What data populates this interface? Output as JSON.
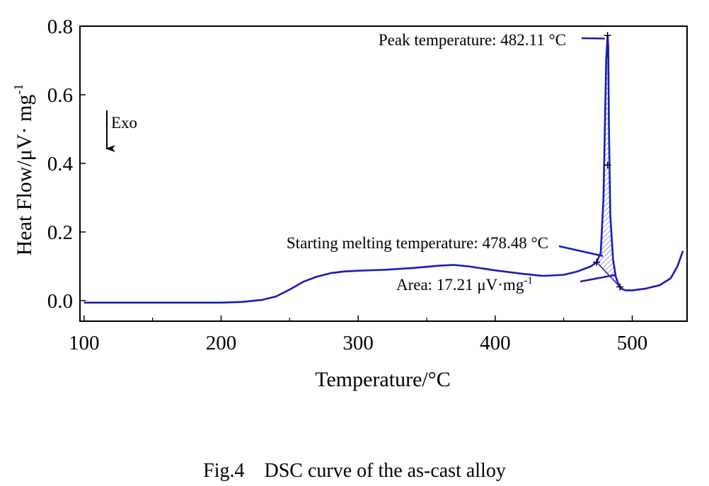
{
  "chart_data": {
    "type": "line",
    "xlabel": "Temperature/°C",
    "ylabel": "Heat Flow/μV· mg",
    "ylabel_sup": "-1",
    "xlim": [
      97,
      540
    ],
    "ylim": [
      -0.06,
      0.8
    ],
    "xticks": [
      100,
      200,
      300,
      400,
      500
    ],
    "yticks": [
      0.0,
      0.2,
      0.4,
      0.6,
      0.8
    ],
    "xtick_labels": [
      "100",
      "200",
      "300",
      "400",
      "500"
    ],
    "ytick_labels": [
      "0.0",
      "0.2",
      "0.4",
      "0.6",
      "0.8"
    ],
    "series": [
      {
        "color": "#1a1ab4",
        "x": [
          100,
          150,
          200,
          215,
          230,
          240,
          250,
          260,
          270,
          280,
          290,
          300,
          320,
          340,
          360,
          370,
          380,
          400,
          420,
          435,
          450,
          460,
          470,
          474,
          477,
          479,
          480,
          481,
          482,
          482.5,
          483,
          484,
          486,
          488,
          490,
          492,
          495,
          500,
          510,
          520,
          528,
          533,
          537
        ],
        "y": [
          -0.006,
          -0.006,
          -0.006,
          -0.004,
          0.002,
          0.012,
          0.032,
          0.055,
          0.07,
          0.08,
          0.085,
          0.087,
          0.09,
          0.095,
          0.102,
          0.104,
          0.1,
          0.088,
          0.078,
          0.072,
          0.075,
          0.085,
          0.1,
          0.112,
          0.14,
          0.3,
          0.5,
          0.7,
          0.773,
          0.74,
          0.5,
          0.25,
          0.12,
          0.07,
          0.045,
          0.035,
          0.03,
          0.03,
          0.035,
          0.045,
          0.065,
          0.1,
          0.145
        ]
      }
    ],
    "shaded_area": {
      "baseline_start": [
        474,
        0.112
      ],
      "baseline_end": [
        491,
        0.04
      ]
    },
    "markers": [
      {
        "x": 474,
        "y": 0.112
      },
      {
        "x": 491,
        "y": 0.04
      },
      {
        "x": 482,
        "y": 0.773
      },
      {
        "x": 482,
        "y": 0.395
      }
    ],
    "exo_label": "Exo",
    "annotations": [
      {
        "text": "Peak temperature: 482.11 °C",
        "point": [
          482,
          0.764
        ]
      },
      {
        "text": "Starting melting temperature: 478.48 °C",
        "point": [
          478.5,
          0.13
        ]
      },
      {
        "text": "Area: 17.21 μV·mg",
        "sup": "-1",
        "point": [
          488,
          0.075
        ]
      }
    ],
    "grid": false,
    "legend": "none"
  },
  "caption": "Fig.4    DSC curve of the as-cast alloy"
}
